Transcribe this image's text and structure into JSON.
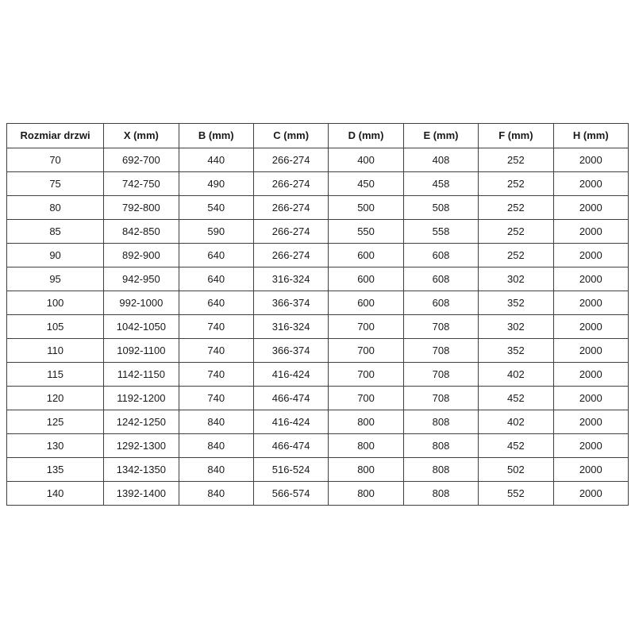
{
  "table": {
    "headers": [
      "Rozmiar drzwi",
      "X (mm)",
      "B (mm)",
      "C (mm)",
      "D (mm)",
      "E (mm)",
      "F (mm)",
      "H (mm)"
    ],
    "rows": [
      [
        "70",
        "692-700",
        "440",
        "266-274",
        "400",
        "408",
        "252",
        "2000"
      ],
      [
        "75",
        "742-750",
        "490",
        "266-274",
        "450",
        "458",
        "252",
        "2000"
      ],
      [
        "80",
        "792-800",
        "540",
        "266-274",
        "500",
        "508",
        "252",
        "2000"
      ],
      [
        "85",
        "842-850",
        "590",
        "266-274",
        "550",
        "558",
        "252",
        "2000"
      ],
      [
        "90",
        "892-900",
        "640",
        "266-274",
        "600",
        "608",
        "252",
        "2000"
      ],
      [
        "95",
        "942-950",
        "640",
        "316-324",
        "600",
        "608",
        "302",
        "2000"
      ],
      [
        "100",
        "992-1000",
        "640",
        "366-374",
        "600",
        "608",
        "352",
        "2000"
      ],
      [
        "105",
        "1042-1050",
        "740",
        "316-324",
        "700",
        "708",
        "302",
        "2000"
      ],
      [
        "110",
        "1092-1100",
        "740",
        "366-374",
        "700",
        "708",
        "352",
        "2000"
      ],
      [
        "115",
        "1142-1150",
        "740",
        "416-424",
        "700",
        "708",
        "402",
        "2000"
      ],
      [
        "120",
        "1192-1200",
        "740",
        "466-474",
        "700",
        "708",
        "452",
        "2000"
      ],
      [
        "125",
        "1242-1250",
        "840",
        "416-424",
        "800",
        "808",
        "402",
        "2000"
      ],
      [
        "130",
        "1292-1300",
        "840",
        "466-474",
        "800",
        "808",
        "452",
        "2000"
      ],
      [
        "135",
        "1342-1350",
        "840",
        "516-524",
        "800",
        "808",
        "502",
        "2000"
      ],
      [
        "140",
        "1392-1400",
        "840",
        "566-574",
        "800",
        "808",
        "552",
        "2000"
      ]
    ],
    "colors": {
      "border": "#404040",
      "text": "#1a1a1a",
      "background": "#ffffff"
    }
  }
}
